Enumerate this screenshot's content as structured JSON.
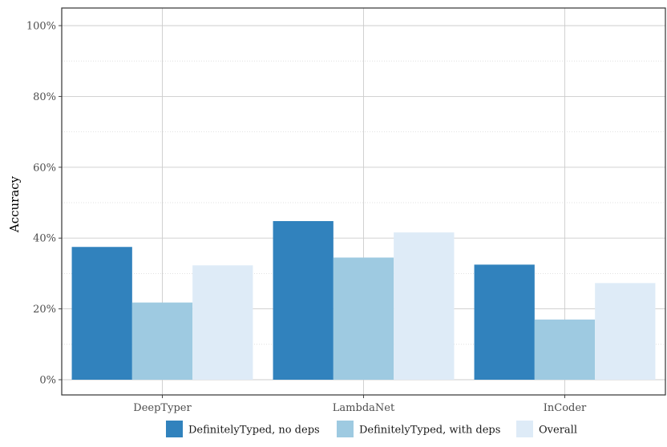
{
  "chart_data": {
    "type": "bar",
    "title": "",
    "xlabel": "",
    "ylabel": "Accuracy",
    "ylim": [
      0,
      100
    ],
    "yticks": [
      "0%",
      "20%",
      "40%",
      "60%",
      "80%",
      "100%"
    ],
    "categories": [
      "DeepTyper",
      "LambdaNet",
      "InCoder"
    ],
    "series": [
      {
        "name": "DefinitelyTyped, no deps",
        "color": "#3182bd",
        "values": [
          37.5,
          44.8,
          32.5
        ]
      },
      {
        "name": "DefinitelyTyped, with deps",
        "color": "#9ecae1",
        "values": [
          21.8,
          34.5,
          17.0
        ]
      },
      {
        "name": "Overall",
        "color": "#deebf7",
        "values": [
          32.3,
          41.6,
          27.3
        ]
      }
    ],
    "grid": true,
    "legend_position": "bottom"
  }
}
